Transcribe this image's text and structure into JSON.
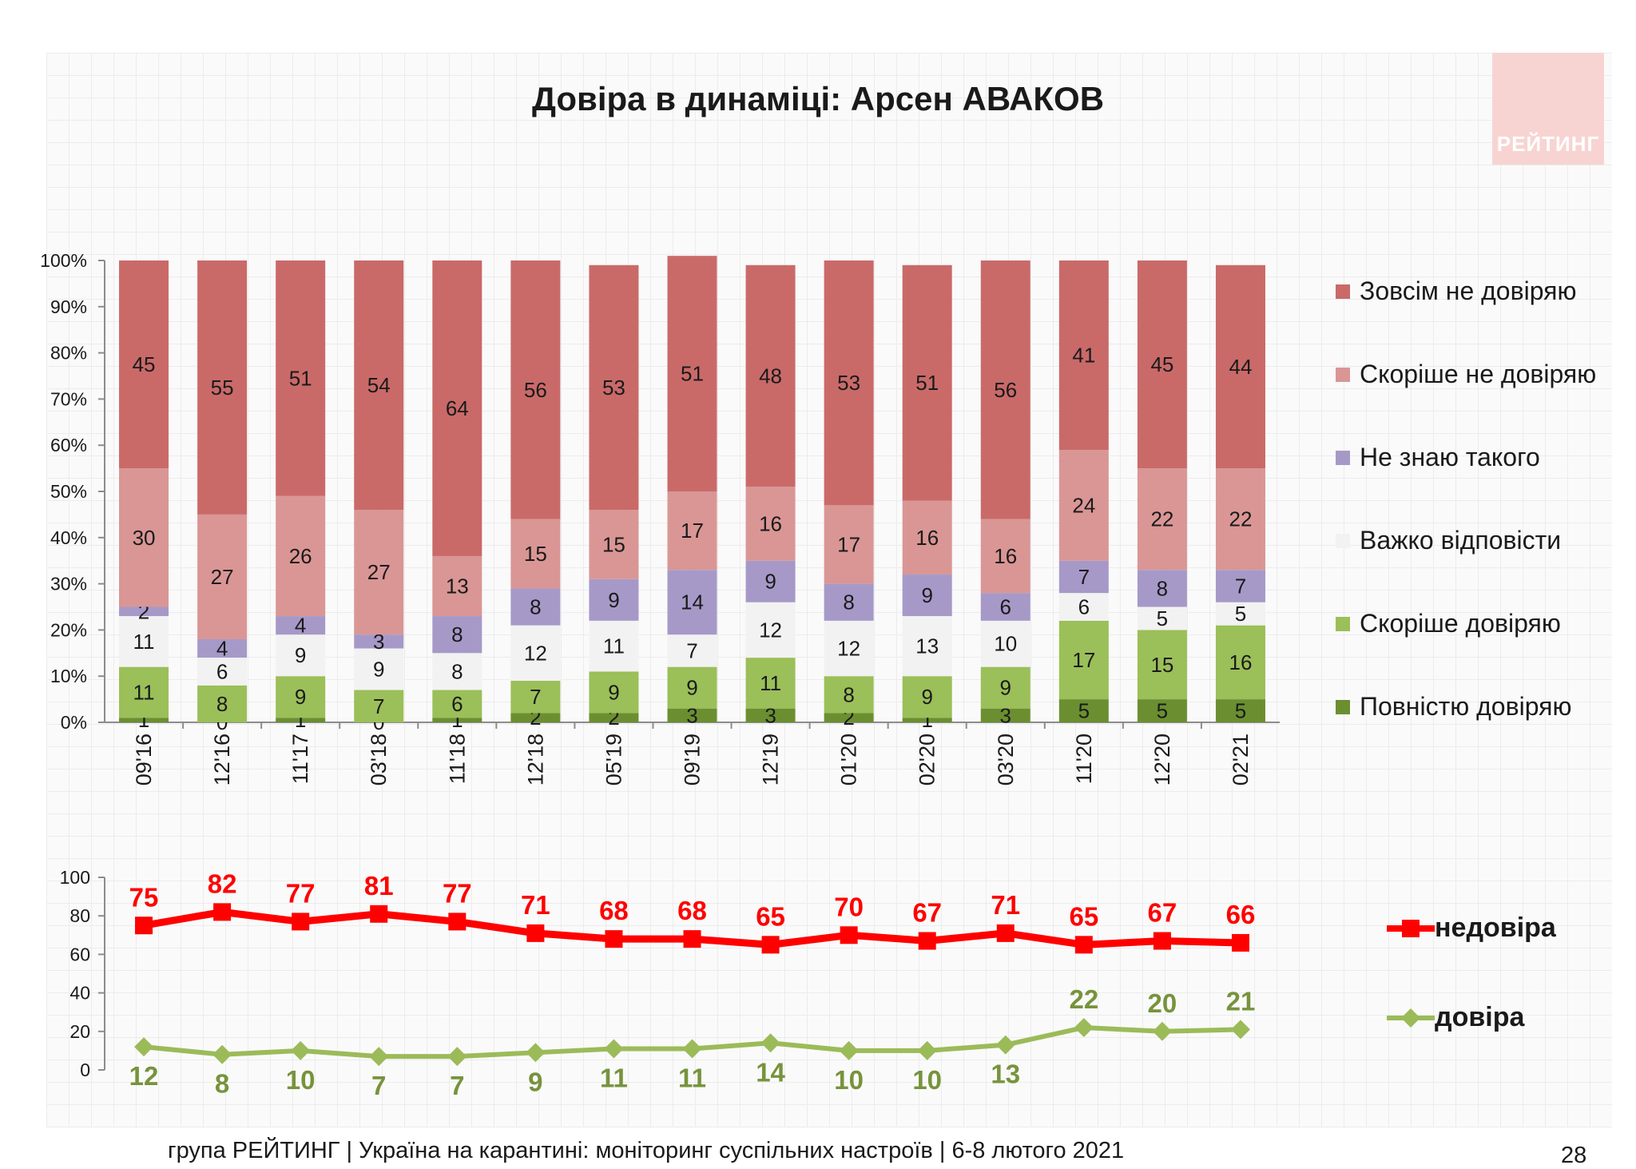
{
  "title": "Довіра в динаміці: Арсен АВАКОВ",
  "logo_text": "РЕЙТИНГ",
  "footer": "група РЕЙТИНГ | Україна на карантині: моніторинг суспільних настроїв | 6-8 лютого 2021",
  "page_number": "28",
  "chart_data": [
    {
      "type": "bar",
      "stacked": true,
      "categories": [
        "09'16",
        "12'16",
        "11'17",
        "03'18",
        "11'18",
        "12'18",
        "05'19",
        "09'19",
        "12'19",
        "01'20",
        "02'20",
        "03'20",
        "11'20",
        "12'20",
        "02'21"
      ],
      "yticks": [
        "0%",
        "10%",
        "20%",
        "30%",
        "40%",
        "50%",
        "60%",
        "70%",
        "80%",
        "90%",
        "100%"
      ],
      "ylim": [
        0,
        100
      ],
      "legend_position": "right",
      "series": [
        {
          "name": "Повністю довіряю",
          "color": "#6b8f30",
          "values": [
            1,
            0,
            1,
            0,
            1,
            2,
            2,
            3,
            3,
            2,
            1,
            3,
            5,
            5,
            5
          ]
        },
        {
          "name": "Скоріше довіряю",
          "color": "#9bbf59",
          "values": [
            11,
            8,
            9,
            7,
            6,
            7,
            9,
            9,
            11,
            8,
            9,
            9,
            17,
            15,
            16
          ]
        },
        {
          "name": "Важко відповісти",
          "color": "#f2f2f2",
          "values": [
            11,
            6,
            9,
            9,
            8,
            12,
            11,
            7,
            12,
            12,
            13,
            10,
            6,
            5,
            5
          ]
        },
        {
          "name": "Не знаю такого",
          "color": "#a699c8",
          "values": [
            2,
            4,
            4,
            3,
            8,
            8,
            9,
            14,
            9,
            8,
            9,
            6,
            7,
            8,
            7
          ]
        },
        {
          "name": "Скоріше не довіряю",
          "color": "#d99695",
          "values": [
            30,
            27,
            26,
            27,
            13,
            15,
            15,
            17,
            16,
            17,
            16,
            16,
            24,
            22,
            22
          ]
        },
        {
          "name": "Зовсім не довіряю",
          "color": "#c96a69",
          "values": [
            45,
            55,
            51,
            54,
            64,
            56,
            53,
            51,
            48,
            53,
            51,
            56,
            41,
            45,
            44
          ]
        }
      ]
    },
    {
      "type": "line",
      "categories": [
        "09'16",
        "12'16",
        "11'17",
        "03'18",
        "11'18",
        "12'18",
        "05'19",
        "09'19",
        "12'19",
        "01'20",
        "02'20",
        "03'20",
        "11'20",
        "12'20",
        "02'21"
      ],
      "yticks": [
        "0",
        "20",
        "40",
        "60",
        "80",
        "100"
      ],
      "ylim": [
        0,
        100
      ],
      "legend_position": "right",
      "series": [
        {
          "name": "недовіра",
          "color": "#ff0000",
          "marker": "square",
          "values": [
            75,
            82,
            77,
            81,
            77,
            71,
            68,
            68,
            65,
            70,
            67,
            71,
            65,
            67,
            66
          ]
        },
        {
          "name": "довіра",
          "color": "#9bbb59",
          "marker": "diamond",
          "values": [
            12,
            8,
            10,
            7,
            7,
            9,
            11,
            11,
            14,
            10,
            10,
            13,
            22,
            20,
            21
          ]
        }
      ]
    }
  ]
}
